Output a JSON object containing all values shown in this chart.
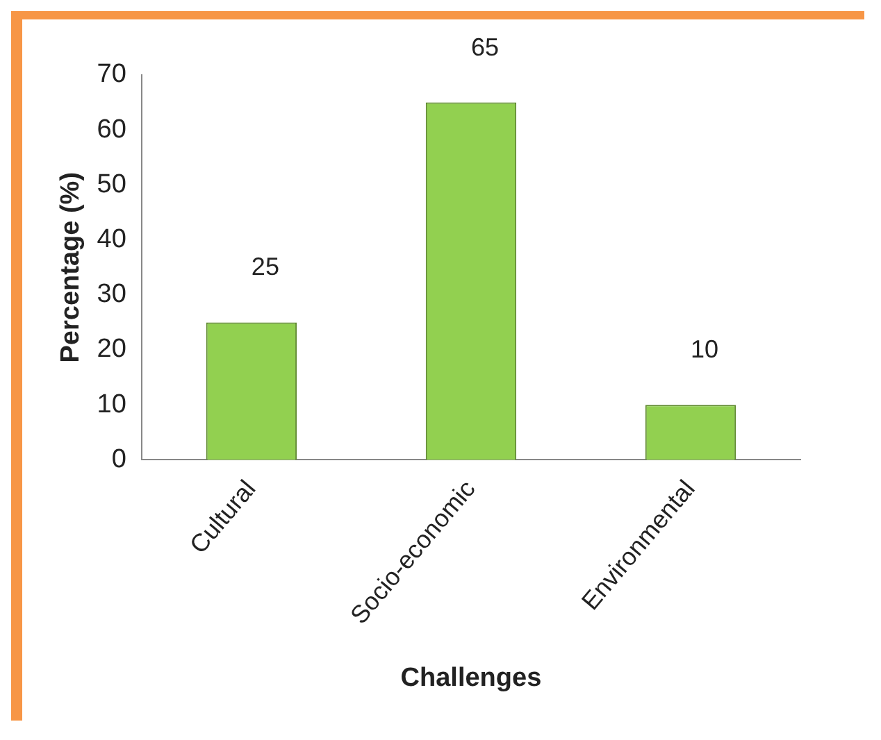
{
  "chart_data": {
    "type": "bar",
    "categories": [
      "Cultural",
      "Socio-economic",
      "Environmental"
    ],
    "values": [
      25,
      65,
      10
    ],
    "color": "#92d050",
    "xlabel": "Challenges",
    "ylabel": "Percentage (%)",
    "ylim": [
      0,
      70
    ],
    "yticks": [
      0,
      10,
      20,
      30,
      40,
      50,
      60,
      70
    ],
    "grid": false,
    "legend": false,
    "data_labels": true
  }
}
